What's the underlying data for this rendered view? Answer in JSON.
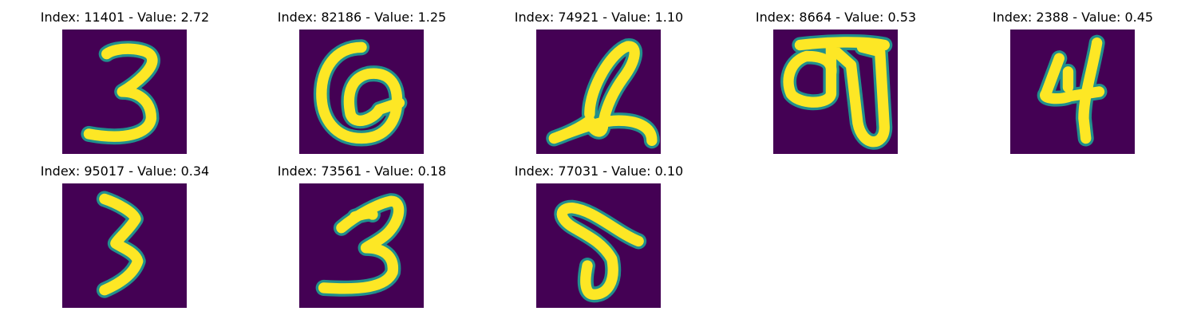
{
  "colors": {
    "background": "#440154",
    "stroke_edge": "#21908d",
    "stroke_core": "#fde725"
  },
  "panels": [
    {
      "title": "Index: 11401 - Value: 2.72",
      "index": 11401,
      "value": 2.72,
      "glyph": "3"
    },
    {
      "title": "Index: 82186 - Value: 1.25",
      "index": 82186,
      "value": 1.25,
      "glyph": "0"
    },
    {
      "title": "Index: 74921 - Value: 1.10",
      "index": 74921,
      "value": 1.1,
      "glyph": "2"
    },
    {
      "title": "Index: 8664 - Value: 0.53",
      "index": 8664,
      "value": 0.53,
      "glyph": "scribble"
    },
    {
      "title": "Index: 2388 - Value: 0.45",
      "index": 2388,
      "value": 0.45,
      "glyph": "4"
    },
    {
      "title": "Index: 95017 - Value: 0.34",
      "index": 95017,
      "value": 0.34,
      "glyph": "3"
    },
    {
      "title": "Index: 73561 - Value: 0.18",
      "index": 73561,
      "value": 0.18,
      "glyph": "3"
    },
    {
      "title": "Index: 77031 - Value: 0.10",
      "index": 77031,
      "value": 0.1,
      "glyph": "5"
    }
  ]
}
